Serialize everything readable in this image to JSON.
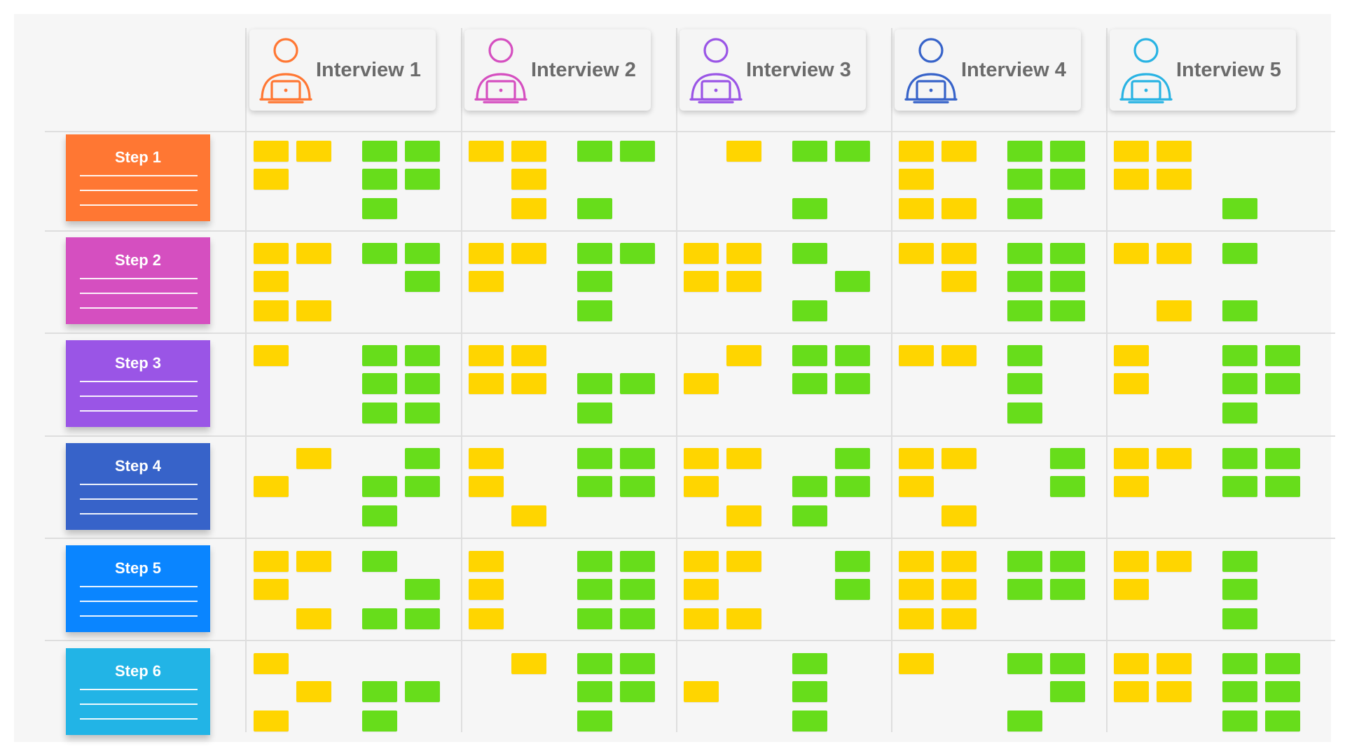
{
  "colors": {
    "board_bg": "#f6f6f6",
    "gridline": "#dedede",
    "note_yellow": "#ffd500",
    "note_green": "#67dd1b",
    "header_text": "#6b6b6b"
  },
  "interviews": [
    {
      "label": "Interview 1",
      "icon": "person-with-laptop-icon",
      "color": "#ff7733"
    },
    {
      "label": "Interview 2",
      "icon": "person-with-laptop-icon",
      "color": "#d54fc0"
    },
    {
      "label": "Interview 3",
      "icon": "person-with-laptop-icon",
      "color": "#9a55e6"
    },
    {
      "label": "Interview 4",
      "icon": "person-with-laptop-icon",
      "color": "#3763c9"
    },
    {
      "label": "Interview 5",
      "icon": "person-with-laptop-icon",
      "color": "#29b3e3"
    }
  ],
  "steps": [
    {
      "label": "Step 1",
      "color": "#ff7733"
    },
    {
      "label": "Step 2",
      "color": "#d54fc0"
    },
    {
      "label": "Step 3",
      "color": "#9a55e6"
    },
    {
      "label": "Step 4",
      "color": "#3763c9"
    },
    {
      "label": "Step 5",
      "color": "#0a85ff"
    },
    {
      "label": "Step 6",
      "color": "#22b4e6"
    }
  ],
  "notes_legend": [
    "yellow sticky note",
    "green sticky note"
  ],
  "cells": [
    [
      {
        "yellow": [
          [
            0,
            0
          ],
          [
            0,
            1
          ],
          [
            1,
            0
          ]
        ],
        "green": [
          [
            0,
            0
          ],
          [
            0,
            1
          ],
          [
            1,
            0
          ],
          [
            1,
            1
          ],
          [
            2,
            0
          ]
        ]
      },
      {
        "yellow": [
          [
            0,
            0
          ],
          [
            0,
            1
          ],
          [
            1,
            1
          ],
          [
            2,
            1
          ]
        ],
        "green": [
          [
            0,
            0
          ],
          [
            0,
            1
          ],
          [
            2,
            0
          ]
        ]
      },
      {
        "yellow": [
          [
            0,
            1
          ]
        ],
        "green": [
          [
            0,
            0
          ],
          [
            0,
            1
          ],
          [
            2,
            0
          ]
        ]
      },
      {
        "yellow": [
          [
            0,
            0
          ],
          [
            0,
            1
          ],
          [
            1,
            0
          ],
          [
            2,
            0
          ],
          [
            2,
            1
          ]
        ],
        "green": [
          [
            0,
            0
          ],
          [
            0,
            1
          ],
          [
            1,
            0
          ],
          [
            1,
            1
          ],
          [
            2,
            0
          ]
        ]
      },
      {
        "yellow": [
          [
            0,
            0
          ],
          [
            0,
            1
          ],
          [
            1,
            0
          ],
          [
            1,
            1
          ]
        ],
        "green": [
          [
            2,
            0
          ]
        ]
      }
    ],
    [
      {
        "yellow": [
          [
            0,
            0
          ],
          [
            0,
            1
          ],
          [
            1,
            0
          ],
          [
            2,
            0
          ],
          [
            2,
            1
          ]
        ],
        "green": [
          [
            0,
            0
          ],
          [
            0,
            1
          ],
          [
            1,
            1
          ]
        ]
      },
      {
        "yellow": [
          [
            0,
            0
          ],
          [
            0,
            1
          ],
          [
            1,
            0
          ]
        ],
        "green": [
          [
            0,
            0
          ],
          [
            0,
            1
          ],
          [
            1,
            0
          ],
          [
            2,
            0
          ]
        ]
      },
      {
        "yellow": [
          [
            0,
            0
          ],
          [
            0,
            1
          ],
          [
            1,
            0
          ],
          [
            1,
            1
          ]
        ],
        "green": [
          [
            0,
            0
          ],
          [
            1,
            1
          ],
          [
            2,
            0
          ]
        ]
      },
      {
        "yellow": [
          [
            0,
            0
          ],
          [
            0,
            1
          ],
          [
            1,
            1
          ]
        ],
        "green": [
          [
            0,
            0
          ],
          [
            0,
            1
          ],
          [
            1,
            0
          ],
          [
            1,
            1
          ],
          [
            2,
            0
          ],
          [
            2,
            1
          ]
        ]
      },
      {
        "yellow": [
          [
            0,
            0
          ],
          [
            0,
            1
          ],
          [
            2,
            1
          ]
        ],
        "green": [
          [
            0,
            0
          ],
          [
            2,
            0
          ]
        ]
      }
    ],
    [
      {
        "yellow": [
          [
            0,
            0
          ]
        ],
        "green": [
          [
            0,
            0
          ],
          [
            0,
            1
          ],
          [
            1,
            0
          ],
          [
            1,
            1
          ],
          [
            2,
            0
          ],
          [
            2,
            1
          ]
        ]
      },
      {
        "yellow": [
          [
            0,
            0
          ],
          [
            0,
            1
          ],
          [
            1,
            0
          ],
          [
            1,
            1
          ]
        ],
        "green": [
          [
            1,
            0
          ],
          [
            1,
            1
          ],
          [
            2,
            0
          ]
        ]
      },
      {
        "yellow": [
          [
            0,
            1
          ],
          [
            1,
            0
          ]
        ],
        "green": [
          [
            0,
            0
          ],
          [
            0,
            1
          ],
          [
            1,
            0
          ],
          [
            1,
            1
          ]
        ]
      },
      {
        "yellow": [
          [
            0,
            0
          ],
          [
            0,
            1
          ]
        ],
        "green": [
          [
            0,
            0
          ],
          [
            1,
            0
          ],
          [
            2,
            0
          ]
        ]
      },
      {
        "yellow": [
          [
            0,
            0
          ],
          [
            1,
            0
          ]
        ],
        "green": [
          [
            0,
            0
          ],
          [
            0,
            1
          ],
          [
            1,
            0
          ],
          [
            1,
            1
          ],
          [
            2,
            0
          ]
        ]
      }
    ],
    [
      {
        "yellow": [
          [
            0,
            1
          ],
          [
            1,
            0
          ]
        ],
        "green": [
          [
            0,
            1
          ],
          [
            1,
            0
          ],
          [
            1,
            1
          ],
          [
            2,
            0
          ]
        ]
      },
      {
        "yellow": [
          [
            0,
            0
          ],
          [
            1,
            0
          ],
          [
            2,
            1
          ]
        ],
        "green": [
          [
            0,
            0
          ],
          [
            0,
            1
          ],
          [
            1,
            0
          ],
          [
            1,
            1
          ]
        ]
      },
      {
        "yellow": [
          [
            0,
            0
          ],
          [
            0,
            1
          ],
          [
            1,
            0
          ],
          [
            2,
            1
          ]
        ],
        "green": [
          [
            0,
            1
          ],
          [
            1,
            0
          ],
          [
            1,
            1
          ],
          [
            2,
            0
          ]
        ]
      },
      {
        "yellow": [
          [
            0,
            0
          ],
          [
            0,
            1
          ],
          [
            1,
            0
          ],
          [
            2,
            1
          ]
        ],
        "green": [
          [
            0,
            1
          ],
          [
            1,
            1
          ]
        ]
      },
      {
        "yellow": [
          [
            0,
            0
          ],
          [
            0,
            1
          ],
          [
            1,
            0
          ]
        ],
        "green": [
          [
            0,
            0
          ],
          [
            0,
            1
          ],
          [
            1,
            0
          ],
          [
            1,
            1
          ]
        ]
      }
    ],
    [
      {
        "yellow": [
          [
            0,
            0
          ],
          [
            0,
            1
          ],
          [
            1,
            0
          ],
          [
            2,
            1
          ]
        ],
        "green": [
          [
            0,
            0
          ],
          [
            1,
            1
          ],
          [
            2,
            0
          ],
          [
            2,
            1
          ]
        ]
      },
      {
        "yellow": [
          [
            0,
            0
          ],
          [
            1,
            0
          ],
          [
            2,
            0
          ]
        ],
        "green": [
          [
            0,
            0
          ],
          [
            0,
            1
          ],
          [
            1,
            0
          ],
          [
            1,
            1
          ],
          [
            2,
            0
          ],
          [
            2,
            1
          ]
        ]
      },
      {
        "yellow": [
          [
            0,
            0
          ],
          [
            0,
            1
          ],
          [
            1,
            0
          ],
          [
            2,
            0
          ],
          [
            2,
            1
          ]
        ],
        "green": [
          [
            0,
            1
          ],
          [
            1,
            1
          ]
        ]
      },
      {
        "yellow": [
          [
            0,
            0
          ],
          [
            0,
            1
          ],
          [
            1,
            0
          ],
          [
            1,
            1
          ],
          [
            2,
            0
          ],
          [
            2,
            1
          ]
        ],
        "green": [
          [
            0,
            0
          ],
          [
            0,
            1
          ],
          [
            1,
            0
          ],
          [
            1,
            1
          ]
        ]
      },
      {
        "yellow": [
          [
            0,
            0
          ],
          [
            0,
            1
          ],
          [
            1,
            0
          ]
        ],
        "green": [
          [
            0,
            0
          ],
          [
            1,
            0
          ],
          [
            2,
            0
          ]
        ]
      }
    ],
    [
      {
        "yellow": [
          [
            0,
            0
          ],
          [
            1,
            1
          ],
          [
            2,
            0
          ]
        ],
        "green": [
          [
            1,
            0
          ],
          [
            1,
            1
          ],
          [
            2,
            0
          ]
        ]
      },
      {
        "yellow": [
          [
            0,
            1
          ]
        ],
        "green": [
          [
            0,
            0
          ],
          [
            0,
            1
          ],
          [
            1,
            0
          ],
          [
            1,
            1
          ],
          [
            2,
            0
          ]
        ]
      },
      {
        "yellow": [
          [
            1,
            0
          ]
        ],
        "green": [
          [
            0,
            0
          ],
          [
            1,
            0
          ],
          [
            2,
            0
          ]
        ]
      },
      {
        "yellow": [
          [
            0,
            0
          ]
        ],
        "green": [
          [
            0,
            0
          ],
          [
            0,
            1
          ],
          [
            1,
            1
          ],
          [
            2,
            0
          ]
        ]
      },
      {
        "yellow": [
          [
            0,
            0
          ],
          [
            0,
            1
          ],
          [
            1,
            0
          ],
          [
            1,
            1
          ]
        ],
        "green": [
          [
            0,
            0
          ],
          [
            0,
            1
          ],
          [
            1,
            0
          ],
          [
            1,
            1
          ],
          [
            2,
            0
          ],
          [
            2,
            1
          ]
        ]
      }
    ]
  ]
}
